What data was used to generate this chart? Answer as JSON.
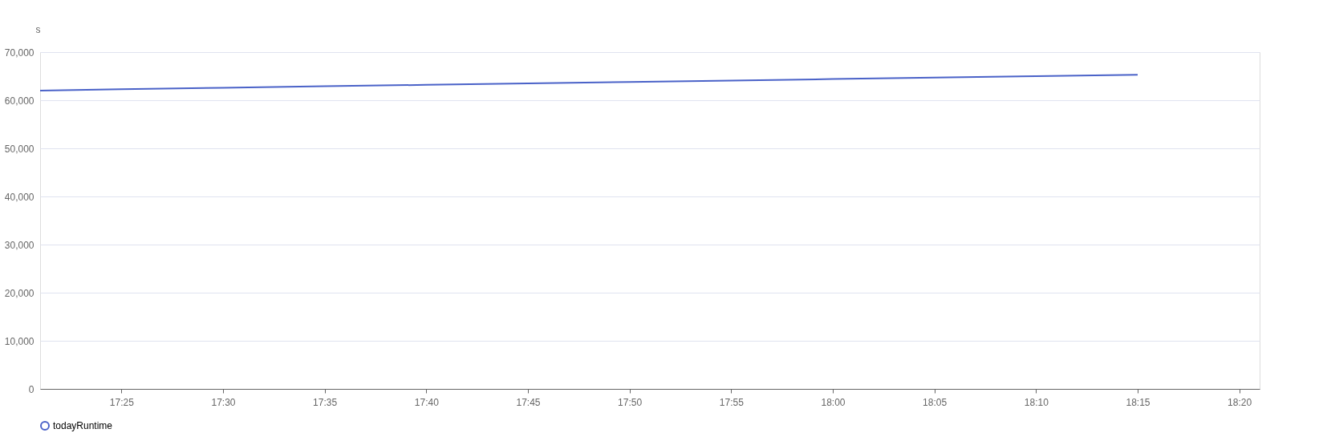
{
  "chart_data": {
    "type": "line",
    "ylabel": "s",
    "x": [
      17.35,
      17.4167,
      17.5,
      17.5833,
      17.6667,
      17.75,
      17.8333,
      17.9167,
      18.0,
      18.0833,
      18.1667,
      18.25
    ],
    "series": [
      {
        "name": "todayRuntime",
        "color": "#4a62c8",
        "values": [
          62000,
          62300,
          62600,
          62900,
          63200,
          63500,
          63800,
          64100,
          64400,
          64700,
          65000,
          65300
        ]
      }
    ],
    "xlim": [
      17.35,
      18.35
    ],
    "xticks": [
      {
        "value": 17.4167,
        "label": "17:25"
      },
      {
        "value": 17.5,
        "label": "17:30"
      },
      {
        "value": 17.5833,
        "label": "17:35"
      },
      {
        "value": 17.6667,
        "label": "17:40"
      },
      {
        "value": 17.75,
        "label": "17:45"
      },
      {
        "value": 17.8333,
        "label": "17:50"
      },
      {
        "value": 17.9167,
        "label": "17:55"
      },
      {
        "value": 18.0,
        "label": "18:00"
      },
      {
        "value": 18.0833,
        "label": "18:05"
      },
      {
        "value": 18.1667,
        "label": "18:10"
      },
      {
        "value": 18.25,
        "label": "18:15"
      },
      {
        "value": 18.3333,
        "label": "18:20"
      }
    ],
    "ylim": [
      0,
      70000
    ],
    "yticks": [
      0,
      {
        "value": 10000,
        "label": "10,000"
      },
      {
        "value": 20000,
        "label": "20,000"
      },
      {
        "value": 30000,
        "label": "30,000"
      },
      {
        "value": 40000,
        "label": "40,000"
      },
      {
        "value": 50000,
        "label": "50,000"
      },
      {
        "value": 60000,
        "label": "60,000"
      },
      {
        "value": 70000,
        "label": "70,000"
      }
    ],
    "grid": "y",
    "legend": "bottom",
    "marker": "none",
    "line_style": "solid"
  }
}
